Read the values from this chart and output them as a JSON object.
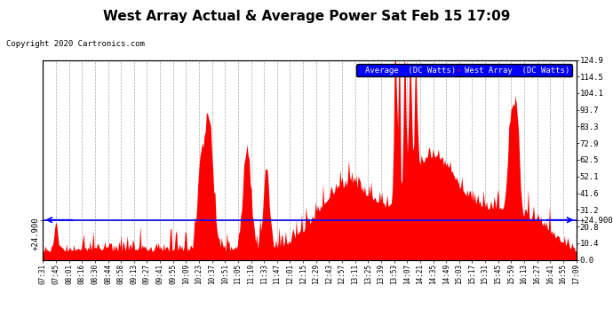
{
  "title": "West Array Actual & Average Power Sat Feb 15 17:09",
  "copyright": "Copyright 2020 Cartronics.com",
  "legend_items": [
    "Average  (DC Watts)",
    "West Array  (DC Watts)"
  ],
  "legend_colors": [
    "blue",
    "red"
  ],
  "y_avg_label": "+24.900",
  "ylim": [
    0,
    124.9
  ],
  "yticks_right": [
    0.0,
    10.4,
    20.8,
    31.2,
    41.6,
    52.1,
    62.5,
    72.9,
    83.3,
    93.7,
    104.1,
    114.5,
    124.9
  ],
  "background_color": "#ffffff",
  "plot_bg_color": "#ffffff",
  "grid_color": "#888888",
  "bar_color": "#ff0000",
  "avg_line_color": "#0000ff",
  "avg_line_value": 24.9,
  "tick_labels": [
    "07:31",
    "07:45",
    "08:01",
    "08:16",
    "08:30",
    "08:44",
    "08:58",
    "09:13",
    "09:27",
    "09:41",
    "09:55",
    "10:09",
    "10:23",
    "10:37",
    "10:51",
    "11:05",
    "11:19",
    "11:33",
    "11:47",
    "12:01",
    "12:15",
    "12:29",
    "12:43",
    "12:57",
    "13:11",
    "13:25",
    "13:39",
    "13:53",
    "14:07",
    "14:21",
    "14:35",
    "14:49",
    "15:03",
    "15:17",
    "15:31",
    "15:45",
    "15:59",
    "16:13",
    "16:27",
    "16:41",
    "16:55",
    "17:09"
  ],
  "num_points": 500
}
